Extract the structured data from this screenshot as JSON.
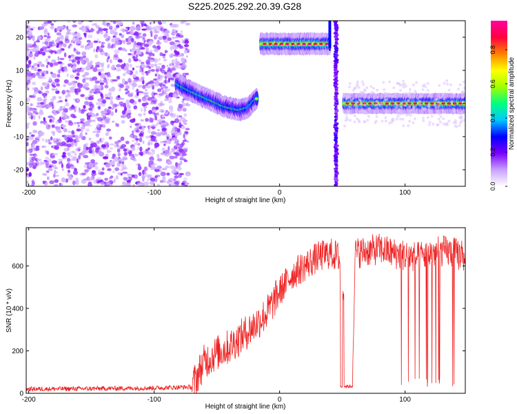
{
  "title": "S225.2025.292.20.39.G28",
  "colorbar": {
    "label": "Normalized spectral amplitude",
    "ticks": [
      "0.0",
      "0.2",
      "0.4",
      "0.6",
      "0.8"
    ],
    "tick_values": [
      0,
      0.2,
      0.4,
      0.6,
      0.8
    ],
    "range": [
      0,
      0.97
    ],
    "colormap": [
      "#ffffff",
      "#c8a0ff",
      "#7a00ff",
      "#0000ff",
      "#00c8ff",
      "#00ff80",
      "#a0ff00",
      "#ffff00",
      "#ff8000",
      "#ff0040",
      "#ff00a0"
    ]
  },
  "chart_data": [
    {
      "type": "heatmap",
      "xlabel": "Height of straight line (km)",
      "ylabel": "Frequency (Hz)",
      "xlim": [
        -202,
        148
      ],
      "ylim": [
        -25,
        25
      ],
      "xticks": [
        -200,
        -100,
        0,
        100
      ],
      "xtick_labels": [
        "-200",
        "-100",
        "0",
        "100"
      ],
      "yticks": [
        -20,
        -10,
        0,
        10,
        20
      ],
      "ytick_labels": [
        "-20",
        "-10",
        "0",
        "10",
        "20"
      ],
      "features": [
        {
          "name": "noise",
          "x_range": [
            -202,
            -73
          ],
          "y_range": [
            -25,
            25
          ],
          "amplitude": 0.08
        },
        {
          "name": "descending band",
          "x": [
            -82,
            -75,
            -68,
            -60,
            -52,
            -45,
            -38,
            -32,
            -25,
            -18
          ],
          "y": [
            6,
            4.5,
            3.2,
            1.8,
            0.5,
            -0.8,
            -1.5,
            -2,
            -1.2,
            1.6
          ],
          "amplitude": 0.55
        },
        {
          "name": "upper band",
          "x_range": [
            -15,
            40
          ],
          "y": 18,
          "amplitude": 0.9
        },
        {
          "name": "vertical streak",
          "x": 45,
          "y_range": [
            -25,
            25
          ],
          "amplitude": 0.25
        },
        {
          "name": "lower band",
          "x_range": [
            51,
            148
          ],
          "y": 0,
          "amplitude": 0.92
        }
      ]
    },
    {
      "type": "line",
      "xlabel": "Height of straight line (km)",
      "ylabel": "SNR (10 * v/v)",
      "xlim": [
        -202,
        148
      ],
      "ylim": [
        0,
        780
      ],
      "xticks": [
        -200,
        -100,
        0,
        100
      ],
      "xtick_labels": [
        "-200",
        "-100",
        "0",
        "100"
      ],
      "yticks": [
        0,
        200,
        400,
        600
      ],
      "ytick_labels": [
        "0",
        "200",
        "400",
        "600"
      ],
      "color": "#ee2020",
      "series": [
        {
          "x": [
            -202,
            -150,
            -100,
            -70,
            -60,
            -50,
            -40,
            -30,
            -20,
            -10,
            0,
            10,
            20,
            30,
            40,
            48,
            49,
            55,
            58,
            60,
            70,
            80,
            90,
            100,
            110,
            120,
            130,
            140,
            148
          ],
          "y": [
            20,
            22,
            25,
            30,
            150,
            190,
            220,
            270,
            320,
            380,
            480,
            560,
            600,
            640,
            660,
            640,
            30,
            30,
            30,
            660,
            670,
            680,
            660,
            650,
            640,
            660,
            670,
            660,
            640
          ]
        }
      ]
    }
  ]
}
